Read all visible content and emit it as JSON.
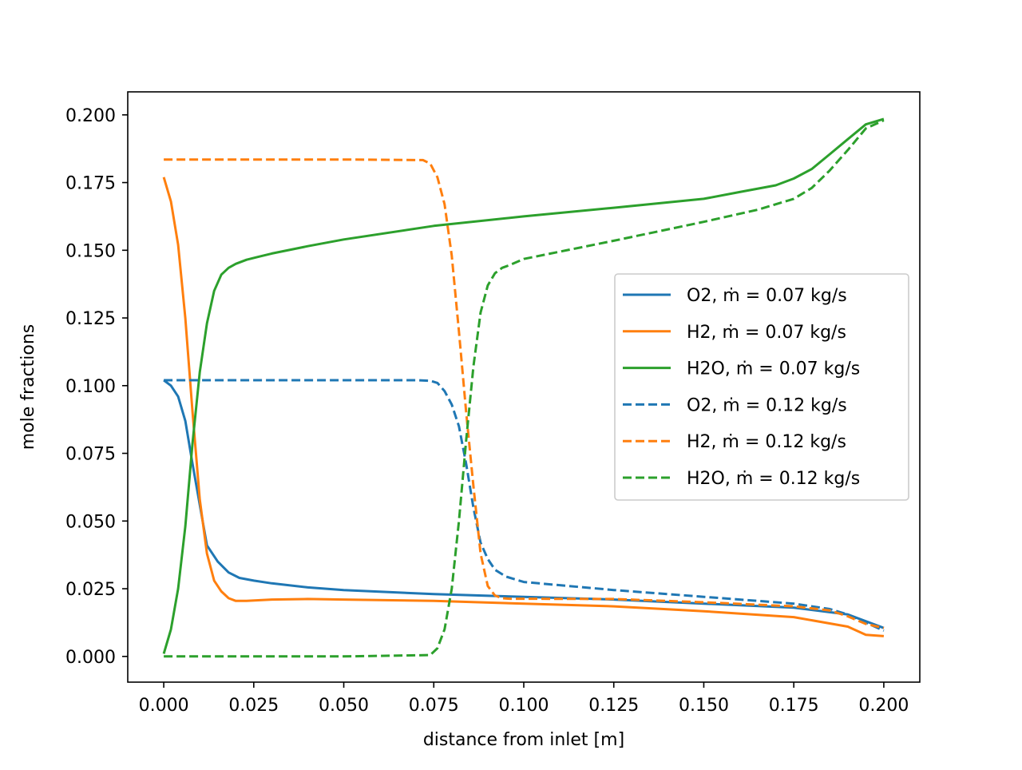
{
  "chart_data": {
    "type": "line",
    "title": "",
    "xlabel": "distance from inlet [m]",
    "ylabel": "mole fractions",
    "xlim": [
      -0.01,
      0.21
    ],
    "ylim": [
      -0.0095,
      0.2085
    ],
    "xticks": [
      0.0,
      0.025,
      0.05,
      0.075,
      0.1,
      0.125,
      0.15,
      0.175,
      0.2
    ],
    "xtick_labels": [
      "0.000",
      "0.025",
      "0.050",
      "0.075",
      "0.100",
      "0.125",
      "0.150",
      "0.175",
      "0.200"
    ],
    "yticks": [
      0.0,
      0.025,
      0.05,
      0.075,
      0.1,
      0.125,
      0.15,
      0.175,
      0.2
    ],
    "ytick_labels": [
      "0.000",
      "0.025",
      "0.050",
      "0.075",
      "0.100",
      "0.125",
      "0.150",
      "0.175",
      "0.200"
    ],
    "grid": false,
    "legend_position": "center-right",
    "series": [
      {
        "name": "O2, ṁ = 0.07 kg/s",
        "color": "#1f77b4",
        "dash": "solid",
        "x": [
          0.0,
          0.002,
          0.004,
          0.006,
          0.008,
          0.01,
          0.012,
          0.015,
          0.018,
          0.021,
          0.025,
          0.03,
          0.04,
          0.05,
          0.075,
          0.1,
          0.125,
          0.15,
          0.175,
          0.19,
          0.2
        ],
        "y": [
          0.102,
          0.1,
          0.096,
          0.087,
          0.071,
          0.056,
          0.041,
          0.035,
          0.031,
          0.029,
          0.028,
          0.027,
          0.0255,
          0.0245,
          0.023,
          0.022,
          0.021,
          0.0195,
          0.018,
          0.0155,
          0.0105
        ]
      },
      {
        "name": "H2, ṁ = 0.07 kg/s",
        "color": "#ff7f0e",
        "dash": "solid",
        "x": [
          0.0,
          0.002,
          0.004,
          0.006,
          0.008,
          0.01,
          0.012,
          0.014,
          0.016,
          0.018,
          0.02,
          0.023,
          0.03,
          0.04,
          0.05,
          0.075,
          0.1,
          0.125,
          0.15,
          0.175,
          0.19,
          0.195,
          0.2
        ],
        "y": [
          0.177,
          0.168,
          0.152,
          0.125,
          0.09,
          0.058,
          0.038,
          0.028,
          0.024,
          0.0215,
          0.0205,
          0.0205,
          0.021,
          0.0212,
          0.021,
          0.0205,
          0.0195,
          0.0185,
          0.0167,
          0.0145,
          0.011,
          0.008,
          0.0075
        ]
      },
      {
        "name": "H2O, ṁ = 0.07 kg/s",
        "color": "#2ca02c",
        "dash": "solid",
        "x": [
          0.0,
          0.002,
          0.004,
          0.006,
          0.008,
          0.01,
          0.012,
          0.014,
          0.016,
          0.018,
          0.02,
          0.023,
          0.026,
          0.03,
          0.04,
          0.05,
          0.075,
          0.1,
          0.125,
          0.15,
          0.16,
          0.17,
          0.175,
          0.18,
          0.185,
          0.19,
          0.195,
          0.2
        ],
        "y": [
          0.001,
          0.01,
          0.025,
          0.048,
          0.079,
          0.105,
          0.123,
          0.135,
          0.141,
          0.1435,
          0.145,
          0.1465,
          0.1475,
          0.1488,
          0.1515,
          0.154,
          0.159,
          0.1625,
          0.1657,
          0.169,
          0.1715,
          0.174,
          0.1765,
          0.18,
          0.1855,
          0.191,
          0.1965,
          0.1985
        ]
      },
      {
        "name": "O2, ṁ = 0.12 kg/s",
        "color": "#1f77b4",
        "dash": "dashed",
        "x": [
          0.0,
          0.025,
          0.05,
          0.07,
          0.074,
          0.076,
          0.078,
          0.08,
          0.082,
          0.084,
          0.086,
          0.088,
          0.09,
          0.092,
          0.095,
          0.1,
          0.125,
          0.15,
          0.175,
          0.185,
          0.19,
          0.195,
          0.2
        ],
        "y": [
          0.102,
          0.102,
          0.102,
          0.102,
          0.1018,
          0.101,
          0.098,
          0.093,
          0.085,
          0.071,
          0.055,
          0.042,
          0.036,
          0.032,
          0.0295,
          0.0275,
          0.0245,
          0.022,
          0.0195,
          0.0175,
          0.0155,
          0.0125,
          0.0095
        ]
      },
      {
        "name": "H2, ṁ = 0.12 kg/s",
        "color": "#ff7f0e",
        "dash": "dashed",
        "x": [
          0.0,
          0.025,
          0.05,
          0.072,
          0.074,
          0.076,
          0.078,
          0.08,
          0.082,
          0.084,
          0.086,
          0.088,
          0.09,
          0.092,
          0.094,
          0.096,
          0.1,
          0.125,
          0.15,
          0.175,
          0.185,
          0.19,
          0.195,
          0.2
        ],
        "y": [
          0.1835,
          0.1835,
          0.1835,
          0.1833,
          0.182,
          0.177,
          0.167,
          0.148,
          0.12,
          0.09,
          0.063,
          0.038,
          0.026,
          0.0225,
          0.0215,
          0.0213,
          0.0213,
          0.0212,
          0.02,
          0.0185,
          0.017,
          0.0148,
          0.012,
          0.0105
        ]
      },
      {
        "name": "H2O, ṁ = 0.12 kg/s",
        "color": "#2ca02c",
        "dash": "dashed",
        "x": [
          0.0,
          0.025,
          0.05,
          0.074,
          0.076,
          0.078,
          0.08,
          0.082,
          0.084,
          0.086,
          0.088,
          0.09,
          0.092,
          0.094,
          0.096,
          0.1,
          0.125,
          0.15,
          0.165,
          0.175,
          0.18,
          0.185,
          0.19,
          0.195,
          0.2
        ],
        "y": [
          0.0,
          0.0,
          0.0,
          0.0005,
          0.003,
          0.01,
          0.025,
          0.05,
          0.08,
          0.107,
          0.127,
          0.137,
          0.1415,
          0.1435,
          0.1445,
          0.1468,
          0.1535,
          0.1605,
          0.165,
          0.169,
          0.173,
          0.1795,
          0.187,
          0.195,
          0.198
        ]
      }
    ]
  }
}
